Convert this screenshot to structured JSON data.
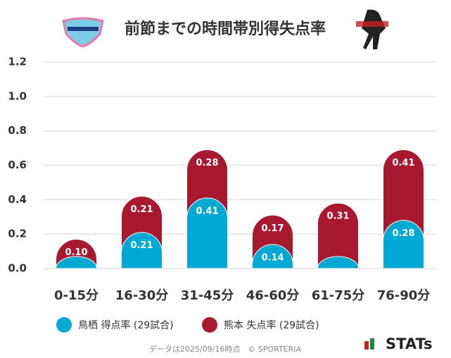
{
  "chart_data": {
    "type": "bar",
    "stacked": true,
    "title": "前節までの時間帯別得失点率",
    "categories": [
      "0-15分",
      "16-30分",
      "31-45分",
      "46-60分",
      "61-75分",
      "76-90分"
    ],
    "series": [
      {
        "name": "鳥栖 得点率 (29試合)",
        "color": "#00a9d4",
        "values": [
          0.07,
          0.21,
          0.41,
          0.14,
          0.07,
          0.28
        ],
        "value_labels": [
          null,
          "0.21",
          "0.41",
          "0.14",
          null,
          "0.28"
        ]
      },
      {
        "name": "熊本 失点率 (29試合)",
        "color": "#a8182f",
        "values": [
          0.1,
          0.21,
          0.28,
          0.17,
          0.31,
          0.41
        ],
        "value_labels": [
          "0.10",
          "0.21",
          "0.28",
          "0.17",
          "0.31",
          "0.41"
        ]
      }
    ],
    "ylim": [
      0,
      1.2
    ],
    "yticks": [
      {
        "value": 0,
        "label": "0.0"
      },
      0.2,
      0.4,
      0.6,
      0.8,
      {
        "value": 1,
        "label": "1.0"
      },
      1.2
    ],
    "grid": true,
    "footer": "データは2025/09/16時点　© SPORTERIA",
    "brand": "STATs"
  }
}
